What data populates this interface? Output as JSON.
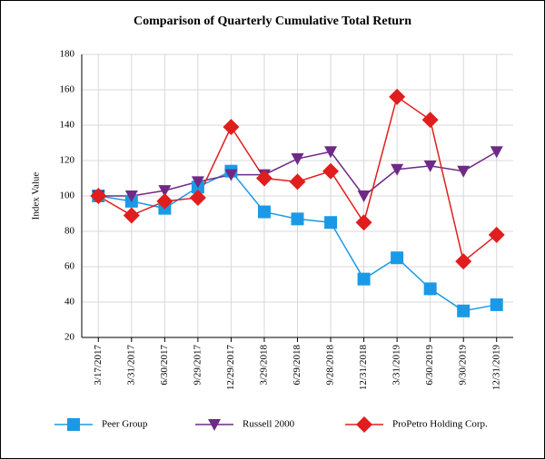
{
  "chart_data": {
    "type": "line",
    "title": "Comparison of Quarterly Cumulative Total Return",
    "y_label": "Index Value",
    "categories": [
      "3/17/2017",
      "3/31/2017",
      "6/30/2017",
      "9/29/2017",
      "12/29/2017",
      "3/29/2018",
      "6/29/2018",
      "9/28/2018",
      "12/31/2018",
      "3/31/2019",
      "6/30/2019",
      "9/30/2019",
      "12/31/2019"
    ],
    "series": [
      {
        "name": "Peer Group",
        "color": "#1a9ae6",
        "marker": "square",
        "values": [
          100,
          97,
          93,
          105,
          114,
          91,
          87,
          85,
          53,
          65,
          47.5,
          35,
          38.5
        ]
      },
      {
        "name": "Russell 2000",
        "color": "#6e2a86",
        "marker": "triangle-down",
        "values": [
          100,
          100,
          103,
          108,
          112,
          112,
          121,
          125,
          100,
          115,
          117,
          114,
          125
        ]
      },
      {
        "name": "ProPetro Holding Corp.",
        "color": "#e01e1e",
        "marker": "diamond",
        "values": [
          100,
          89,
          97,
          99,
          139,
          110,
          108,
          114,
          85,
          156,
          143,
          63,
          78
        ]
      }
    ],
    "ylim": [
      20,
      180
    ],
    "yticks": [
      20,
      40,
      60,
      80,
      100,
      120,
      140,
      160,
      180
    ],
    "grid": true,
    "legend": "bottom"
  }
}
